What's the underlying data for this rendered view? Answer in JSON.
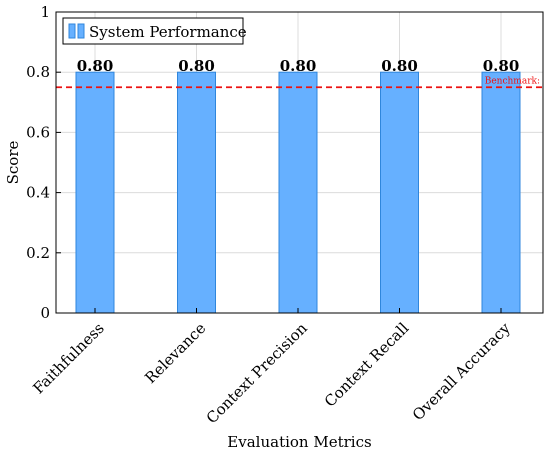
{
  "chart_data": {
    "type": "bar",
    "categories": [
      "Faithfulness",
      "Relevance",
      "Context Precision",
      "Context Recall",
      "Overall Accuracy"
    ],
    "series": [
      {
        "name": "System Performance",
        "values": [
          0.8,
          0.8,
          0.8,
          0.8,
          0.8
        ],
        "color": "#66b0ff",
        "edge_color": "#2f86dc"
      }
    ],
    "data_labels": [
      "0.80",
      "0.80",
      "0.80",
      "0.80",
      "0.80"
    ],
    "xlabel": "Evaluation Metrics",
    "ylabel": "Score",
    "ylim": [
      0,
      1
    ],
    "yticks": [
      0,
      0.2,
      0.4,
      0.6,
      0.8,
      1
    ],
    "ytick_labels": [
      "0",
      "0.2",
      "0.4",
      "0.6",
      "0.8",
      "1"
    ],
    "grid": true,
    "legend_position": "top-left",
    "reference_line": {
      "value": 0.75,
      "label": "Benchmark:",
      "color": "#ee1111",
      "style": "dashed"
    }
  }
}
